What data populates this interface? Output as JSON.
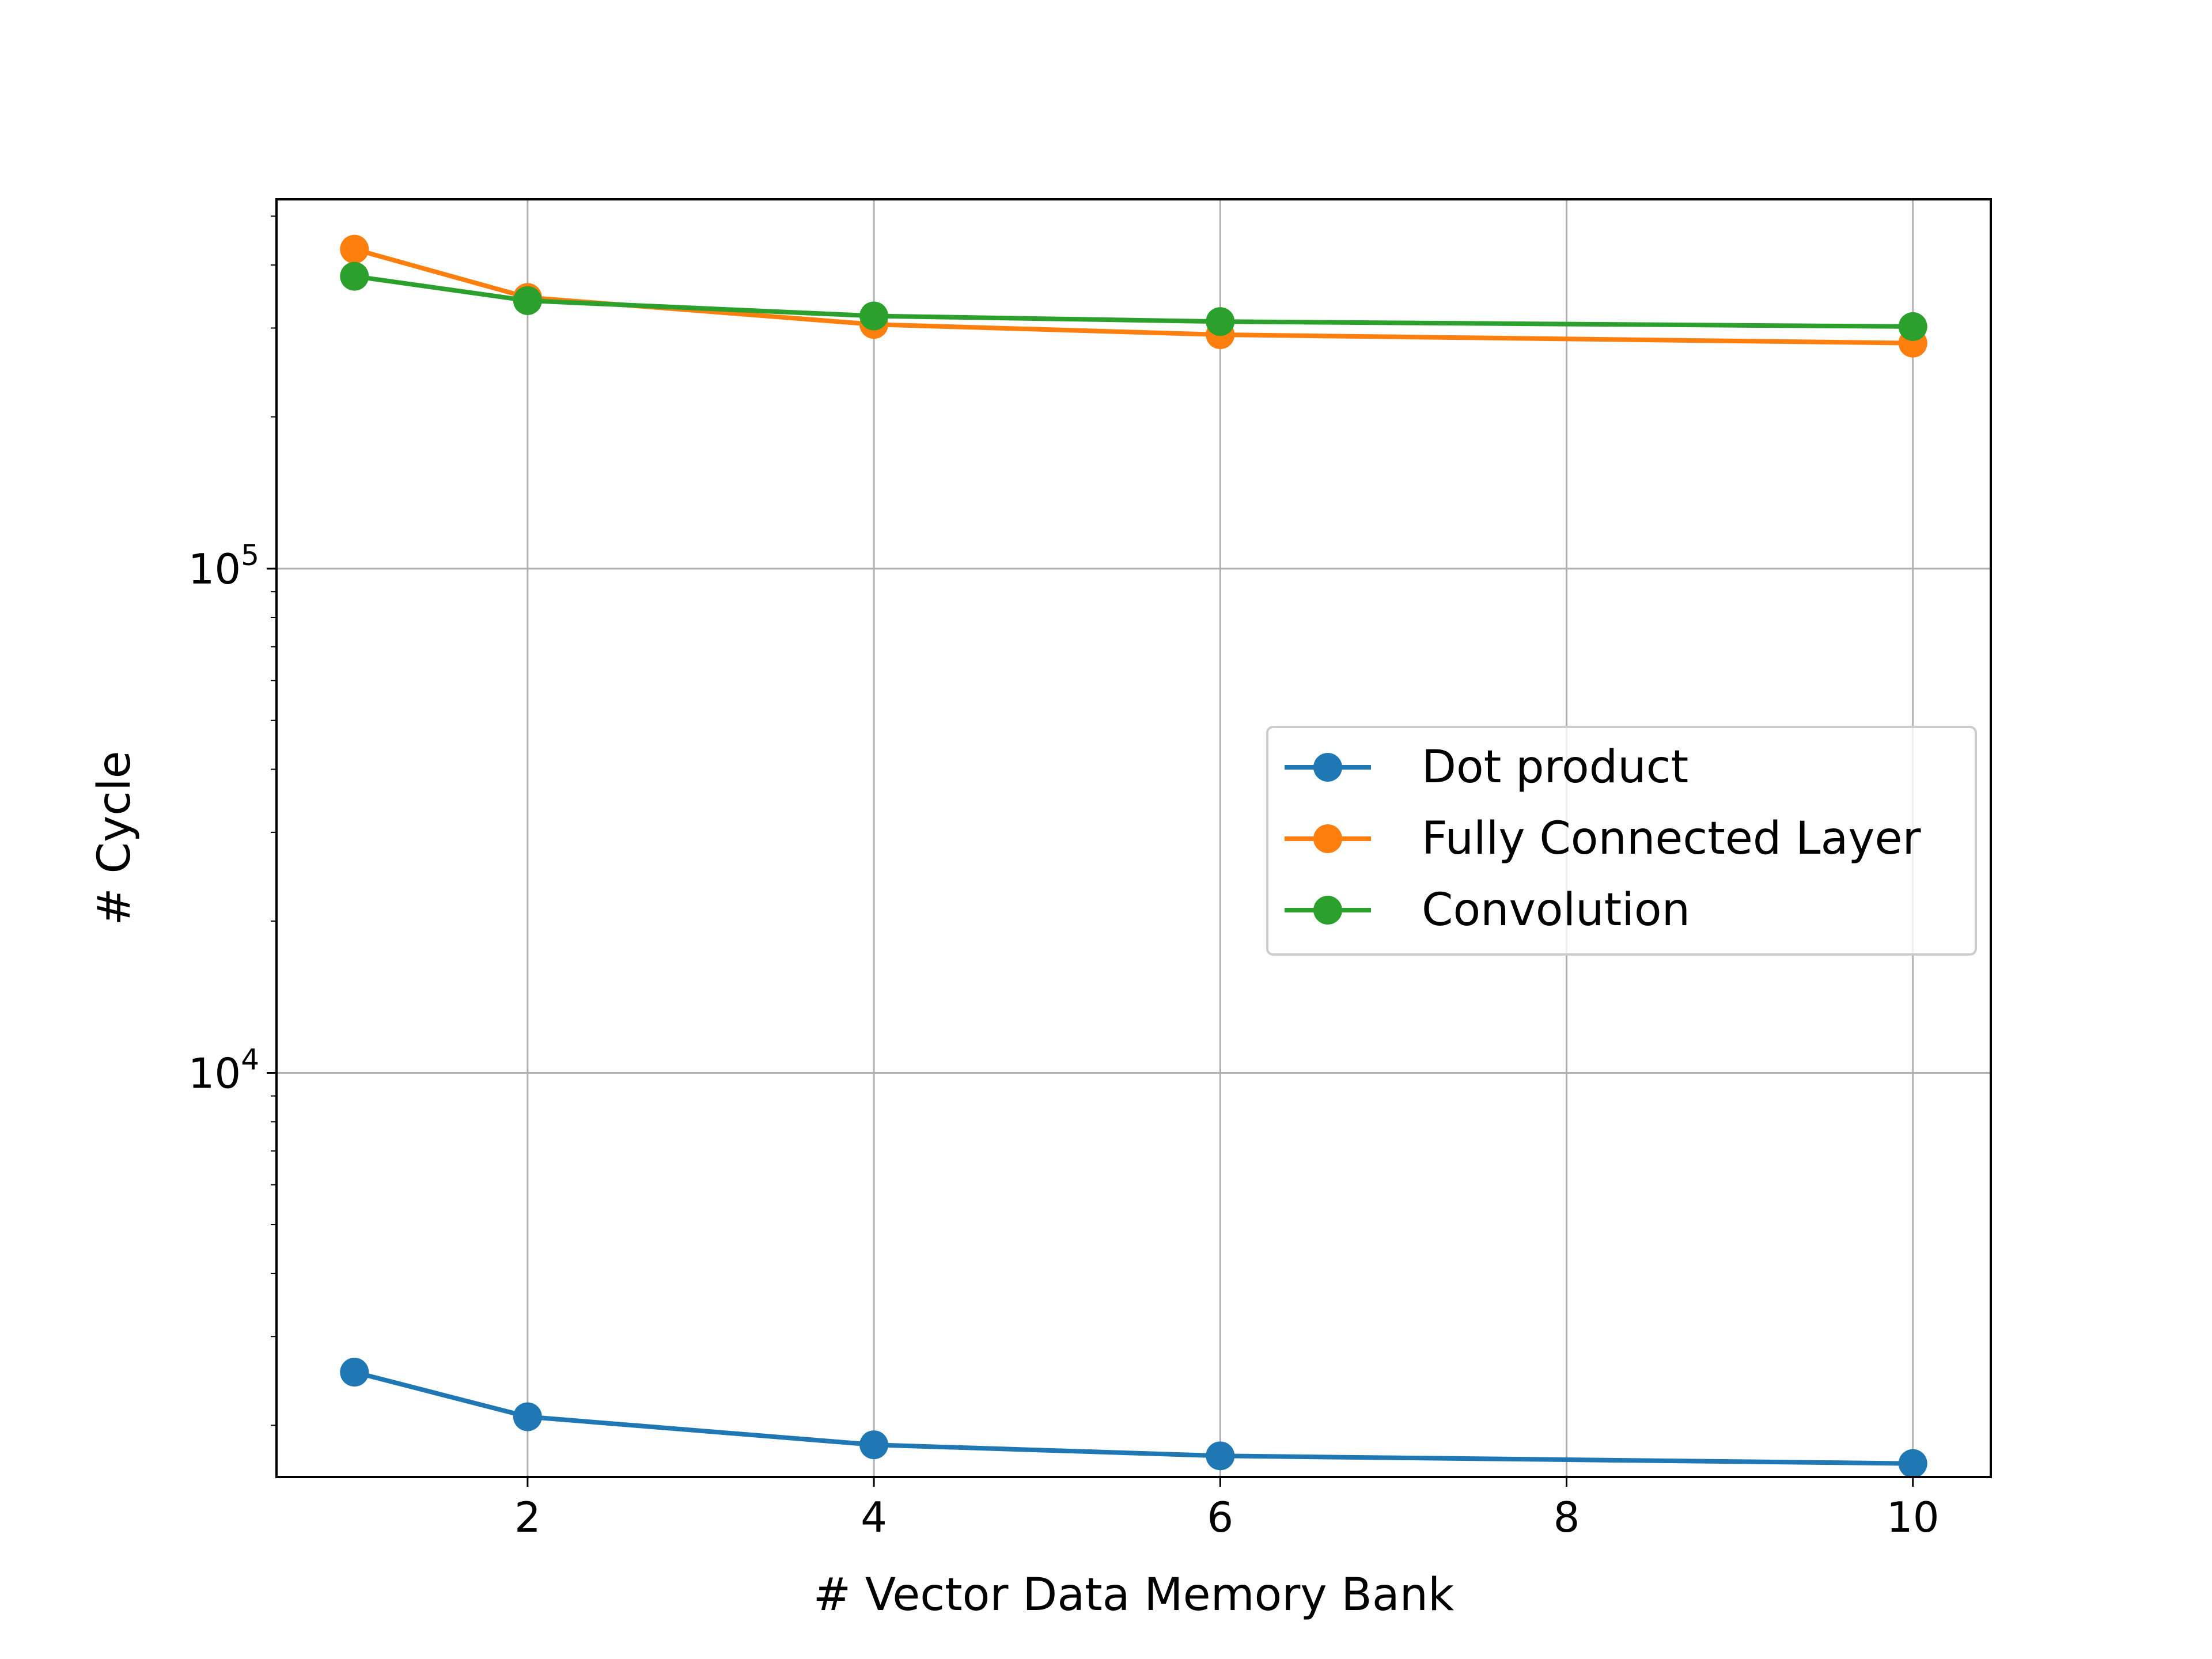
{
  "chart_data": {
    "type": "line",
    "xlabel": "# Vector Data Memory Bank",
    "ylabel": "# Cycle",
    "x": [
      1,
      2,
      4,
      6,
      10
    ],
    "xlim": [
      0.55,
      10.45
    ],
    "xticks": [
      2,
      4,
      6,
      8,
      10
    ],
    "yscale": "log",
    "ylim": [
      1580,
      540000
    ],
    "yticks": [
      {
        "value": 10000,
        "base": "10",
        "exp": "4"
      },
      {
        "value": 100000,
        "base": "10",
        "exp": "5"
      }
    ],
    "grid": true,
    "legend": {
      "placement": "center-right"
    },
    "series": [
      {
        "name": "Dot product",
        "color": "#1f77b4",
        "values": [
          2550,
          2080,
          1830,
          1740,
          1680
        ]
      },
      {
        "name": "Fully Connected Layer",
        "color": "#ff7f0e",
        "values": [
          430000,
          345000,
          305000,
          291000,
          280000
        ]
      },
      {
        "name": "Convolution",
        "color": "#2ca02c",
        "values": [
          380000,
          340000,
          317000,
          309000,
          302000
        ]
      }
    ]
  }
}
